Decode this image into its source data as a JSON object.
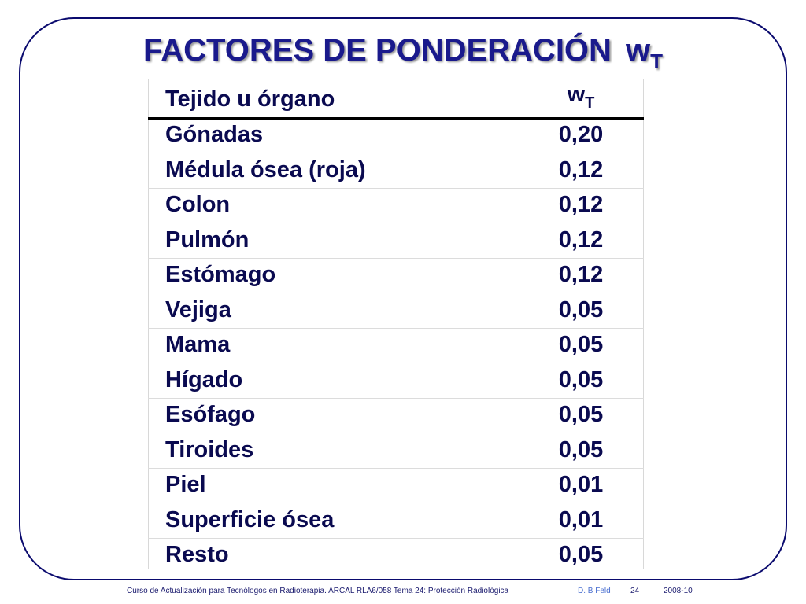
{
  "slide": {
    "title": "FACTORES DE PONDERACIÓN",
    "title_symbol": "w",
    "title_symbol_sub": "T"
  },
  "table": {
    "header": {
      "tissue": "Tejido u órgano",
      "factor": "w",
      "factor_sub": "T"
    },
    "rows": [
      {
        "tissue": "Gónadas",
        "factor": "0,20"
      },
      {
        "tissue": "Médula ósea (roja)",
        "factor": "0,12"
      },
      {
        "tissue": "Colon",
        "factor": "0,12"
      },
      {
        "tissue": "Pulmón",
        "factor": "0,12"
      },
      {
        "tissue": "Estómago",
        "factor": "0,12"
      },
      {
        "tissue": "Vejiga",
        "factor": "0,05"
      },
      {
        "tissue": "Mama",
        "factor": "0,05"
      },
      {
        "tissue": "Hígado",
        "factor": "0,05"
      },
      {
        "tissue": "Esófago",
        "factor": "0,05"
      },
      {
        "tissue": "Tiroides",
        "factor": "0,05"
      },
      {
        "tissue": "Piel",
        "factor": "0,01"
      },
      {
        "tissue": "Superficie ósea",
        "factor": "0,01"
      },
      {
        "tissue": "Resto",
        "factor": "0,05"
      }
    ]
  },
  "footer": {
    "course": "Curso de Actualización para Tecnólogos en Radioterapia.  ARCAL RLA6/058  Tema 24: Protección Radiológica",
    "author": "D. B Feld",
    "page": "24",
    "date": "2008-10"
  },
  "colors": {
    "title": "#1a1a8c",
    "frame": "#0a0a6e",
    "text": "#0a0a50"
  }
}
